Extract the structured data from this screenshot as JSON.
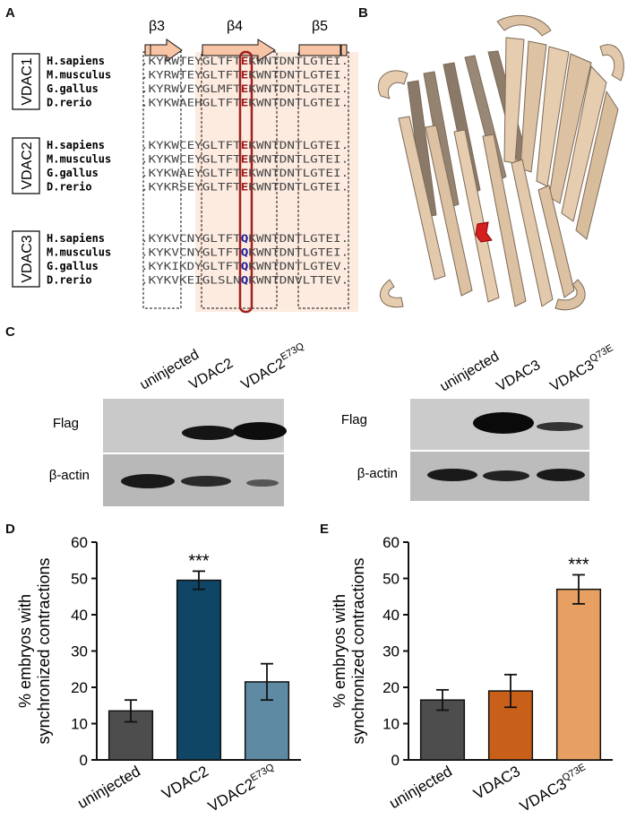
{
  "panels": {
    "a": "A",
    "b": "B",
    "c": "C",
    "d": "D",
    "e": "E"
  },
  "alignment": {
    "strands": [
      "β3",
      "β4",
      "β5"
    ],
    "groups": [
      {
        "name": "VDAC1",
        "rows": [
          {
            "species": "H.sapiens",
            "seq": ".KYRWTEYGLTFTEKWNTDNTLGTEI."
          },
          {
            "species": "M.musculus",
            "seq": ".KYRWTEYGLTFTEKWNTDNTLGTEI."
          },
          {
            "species": "G.gallus",
            "seq": ".KYRWVEYGLMFTEKWNTDNTLGTEI."
          },
          {
            "species": "D.rerio",
            "seq": ".KYKWAEHGLTFTEKWNTDNTLGTEI."
          }
        ]
      },
      {
        "name": "VDAC2",
        "rows": [
          {
            "species": "H.sapiens",
            "seq": ".KYKWCEYGLTFTEKWNTDNTLGTEI."
          },
          {
            "species": "M.musculus",
            "seq": ".KYKWCEYGLTFTEKWNTDNTLGTEI."
          },
          {
            "species": "G.gallus",
            "seq": ".KYKWAEYGLTFTEKWNTDNTLGTEI."
          },
          {
            "species": "D.rerio",
            "seq": ".KYKRSEYGLTFTEKWNTDNTLGTEI."
          }
        ]
      },
      {
        "name": "VDAC3",
        "rows": [
          {
            "species": "H.sapiens",
            "seq": ".KYKVCNYGLTFTQKWNTDNTLGTEI."
          },
          {
            "species": "M.musculus",
            "seq": ".KYKVCNYGLTFTQKWNTDNTLGTEI."
          },
          {
            "species": "G.gallus",
            "seq": ".KYKIKDYGLTFTQKWNTDNTLGTEV."
          },
          {
            "species": "D.rerio",
            "seq": ".KYKVKEIGLSLNQKWNTDNVLTTEV."
          }
        ]
      }
    ],
    "highlight_color": "#a02020",
    "q_color": "#1a1a9a",
    "shade_color": "#fdebe0"
  },
  "blots": {
    "left": {
      "lanes": [
        "uninjected",
        "VDAC2",
        "VDAC2"
      ],
      "lane_sup": [
        "",
        "",
        "E73Q"
      ],
      "rows": [
        "Flag",
        "β-actin"
      ]
    },
    "right": {
      "lanes": [
        "uninjected",
        "VDAC3",
        "VDAC3"
      ],
      "lane_sup": [
        "",
        "",
        "Q73E"
      ],
      "rows": [
        "Flag",
        "β-actin"
      ]
    }
  },
  "chart_data": [
    {
      "type": "bar",
      "panel": "D",
      "categories": [
        "uninjected",
        "VDAC2",
        "VDAC2"
      ],
      "category_sup": [
        "",
        "",
        "E73Q"
      ],
      "values": [
        13.5,
        49.5,
        21.5
      ],
      "errors": [
        3,
        2.5,
        5
      ],
      "colors": [
        "#4d4d4d",
        "#0f4565",
        "#5f8aa3"
      ],
      "annotations": [
        "",
        "***",
        ""
      ],
      "ylabel_lines": [
        "% embryos with",
        "synchronized contractions"
      ],
      "ylim": [
        0,
        60
      ],
      "yticks": [
        0,
        10,
        20,
        30,
        40,
        50,
        60
      ]
    },
    {
      "type": "bar",
      "panel": "E",
      "categories": [
        "uninjected",
        "VDAC3",
        "VDAC3"
      ],
      "category_sup": [
        "",
        "",
        "Q73E"
      ],
      "values": [
        16.5,
        19,
        47
      ],
      "errors": [
        2.8,
        4.5,
        4
      ],
      "colors": [
        "#4d4d4d",
        "#c9601a",
        "#e7a062"
      ],
      "annotations": [
        "",
        "",
        "***"
      ],
      "ylabel_lines": [
        "% embryos with",
        "synchronized contractions"
      ],
      "ylim": [
        0,
        60
      ],
      "yticks": [
        0,
        10,
        20,
        30,
        40,
        50,
        60
      ]
    }
  ]
}
